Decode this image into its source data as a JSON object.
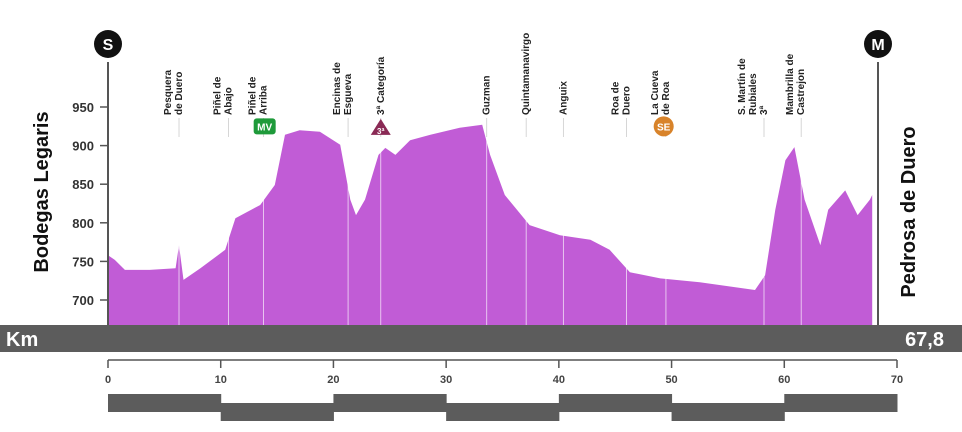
{
  "chart_data": {
    "type": "area",
    "title": "",
    "start_label": "Bodegas Legaris",
    "finish_label": "Pedrosa de Duero",
    "start_icon": "S",
    "finish_icon": "M",
    "distance_unit": "Km",
    "total_distance": "67,8",
    "fill_color": "#c15cd6",
    "xlim": [
      0,
      70
    ],
    "ylim": [
      668,
      960
    ],
    "x_ticks": [
      0,
      10,
      20,
      30,
      40,
      50,
      60,
      70
    ],
    "y_ticks": [
      700,
      750,
      800,
      850,
      900,
      950
    ],
    "profile": [
      [
        0,
        758
      ],
      [
        0.6,
        752
      ],
      [
        1.5,
        739
      ],
      [
        3.7,
        739
      ],
      [
        6,
        741
      ],
      [
        6.3,
        771
      ],
      [
        6.7,
        726
      ],
      [
        8.2,
        741
      ],
      [
        10.4,
        765
      ],
      [
        11.3,
        806
      ],
      [
        13.5,
        823
      ],
      [
        14.8,
        849
      ],
      [
        15.7,
        914
      ],
      [
        17,
        920
      ],
      [
        18.8,
        918
      ],
      [
        20.6,
        901
      ],
      [
        21.5,
        830
      ],
      [
        22,
        810
      ],
      [
        22.8,
        830
      ],
      [
        24,
        888
      ],
      [
        24.6,
        897
      ],
      [
        25.5,
        888
      ],
      [
        26.8,
        907
      ],
      [
        28.6,
        914
      ],
      [
        31.2,
        923
      ],
      [
        33.2,
        927
      ],
      [
        33.9,
        888
      ],
      [
        35.2,
        836
      ],
      [
        37.4,
        797
      ],
      [
        40.1,
        784
      ],
      [
        42.8,
        778
      ],
      [
        44.5,
        765
      ],
      [
        46.3,
        736
      ],
      [
        49,
        728
      ],
      [
        52.5,
        723
      ],
      [
        57.4,
        713
      ],
      [
        58.3,
        732
      ],
      [
        59.2,
        817
      ],
      [
        60.1,
        881
      ],
      [
        60.9,
        898
      ],
      [
        61.8,
        830
      ],
      [
        63.2,
        771
      ],
      [
        63.9,
        817
      ],
      [
        65.4,
        842
      ],
      [
        66.5,
        810
      ],
      [
        67.6,
        830
      ],
      [
        67.8,
        836
      ]
    ],
    "towns": [
      {
        "km": 6.3,
        "lines": [
          "Pesquera",
          "de Duero"
        ]
      },
      {
        "km": 10.7,
        "lines": [
          "Piñel de",
          "Abajo"
        ]
      },
      {
        "km": 13.8,
        "lines": [
          "Piñel de",
          "Arriba"
        ]
      },
      {
        "km": 21.3,
        "lines": [
          "Encinas de",
          "Esgueva"
        ]
      },
      {
        "km": 24.2,
        "lines": [
          "3ª Categoría"
        ]
      },
      {
        "km": 33.6,
        "lines": [
          "Guzman"
        ]
      },
      {
        "km": 37.1,
        "lines": [
          "Quintamanavirgo"
        ]
      },
      {
        "km": 40.4,
        "lines": [
          "Anguix"
        ]
      },
      {
        "km": 46.0,
        "lines": [
          "Roa de",
          "Duero"
        ]
      },
      {
        "km": 49.5,
        "lines": [
          "La Cueva",
          "de Roa"
        ]
      },
      {
        "km": 58.2,
        "lines": [
          "S. Martín de",
          "Rubiales",
          "3ª"
        ]
      },
      {
        "km": 61.5,
        "lines": [
          "Mambrilla de",
          "Castrejon"
        ]
      }
    ],
    "markers": [
      {
        "label": "MV",
        "km": 13.9,
        "elev": 912,
        "shape": "rect",
        "color": "#1e9a3a"
      },
      {
        "label": "3ª",
        "km": 24.2,
        "elev": 910,
        "shape": "triangle",
        "color": "#8a2a55"
      },
      {
        "label": "SE",
        "km": 49.3,
        "elev": 912,
        "shape": "circle",
        "color": "#d8832a"
      }
    ]
  }
}
